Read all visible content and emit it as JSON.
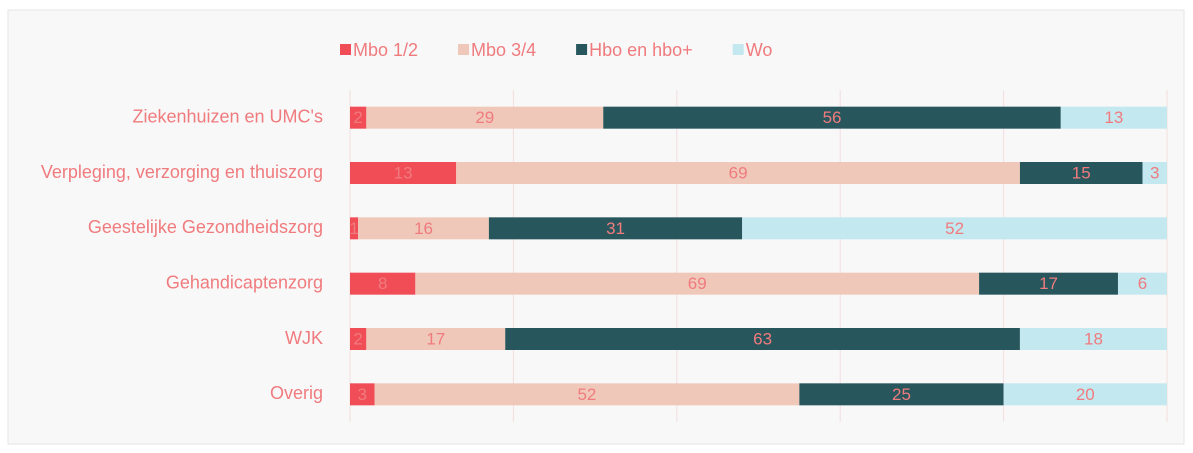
{
  "chart_data": {
    "type": "stacked-barh",
    "categories": [
      "Ziekenhuizen en UMC's",
      "Verpleging, verzorging en thuiszorg",
      "Geestelijke Gezondheidszorg",
      "Gehandicaptenzorg",
      "WJK",
      "Overig"
    ],
    "series": [
      {
        "name": "Mbo 1/2",
        "color": "#f04d56",
        "values": [
          2,
          13,
          1,
          8,
          2,
          3
        ]
      },
      {
        "name": "Mbo 3/4",
        "color": "#f0c8b9",
        "values": [
          29,
          69,
          16,
          69,
          17,
          52
        ]
      },
      {
        "name": "Hbo en hbo+",
        "color": "#27575c",
        "values": [
          56,
          15,
          31,
          17,
          63,
          25
        ]
      },
      {
        "name": "Wo",
        "color": "#c4e8f0",
        "values": [
          13,
          3,
          52,
          6,
          18,
          20
        ]
      }
    ],
    "xlim": [
      0,
      100
    ],
    "xticks": [
      0,
      20,
      40,
      60,
      80,
      100
    ],
    "grid": true,
    "legend": "top"
  }
}
